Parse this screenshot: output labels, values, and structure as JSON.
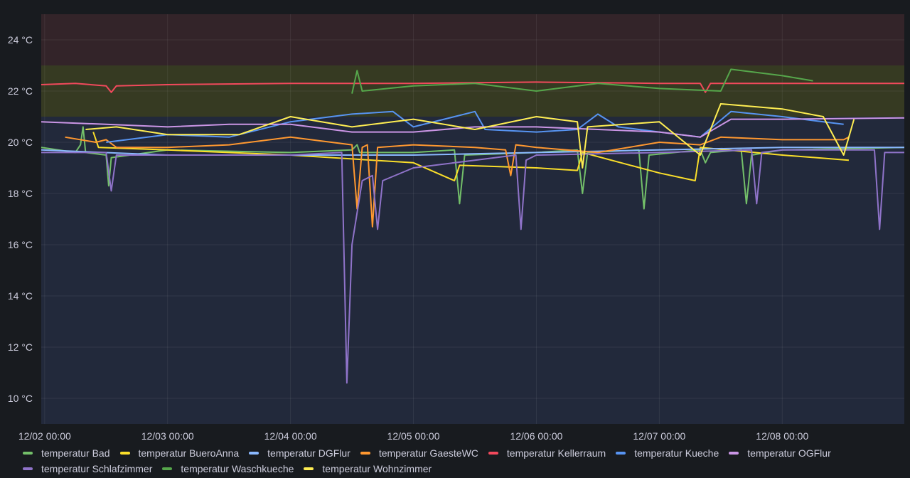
{
  "chart_data": {
    "type": "line",
    "title": "",
    "xlabel": "",
    "ylabel": "",
    "unit": "°C",
    "ylim": [
      9,
      25
    ],
    "xlim": [
      "2023-12-01T23:20",
      "2023-12-08T23:50"
    ],
    "grid": true,
    "legend_position": "bottom",
    "x_ticks": [
      "12/02 00:00",
      "12/03 00:00",
      "12/04 00:00",
      "12/05 00:00",
      "12/06 00:00",
      "12/07 00:00",
      "12/08 00:00"
    ],
    "y_ticks": [
      "10 °C",
      "12 °C",
      "14 °C",
      "16 °C",
      "18 °C",
      "20 °C",
      "22 °C",
      "24 °C"
    ],
    "thresholds": [
      {
        "from": 9,
        "to": 21,
        "color": "#22293b"
      },
      {
        "from": 21,
        "to": 23,
        "color": "#363a22"
      },
      {
        "from": 23,
        "to": 25,
        "color": "#332429"
      }
    ],
    "series": [
      {
        "name": "temperatur Bad",
        "color": "#73bf69",
        "points": [
          [
            "2023-12-01T23:20",
            19.8
          ],
          [
            "2023-12-02T06:00",
            19.6
          ],
          [
            "2023-12-02T07:00",
            19.9
          ],
          [
            "2023-12-02T07:30",
            20.6
          ],
          [
            "2023-12-02T08:00",
            19.6
          ],
          [
            "2023-12-02T12:00",
            19.5
          ],
          [
            "2023-12-02T12:30",
            18.3
          ],
          [
            "2023-12-02T13:00",
            19.4
          ],
          [
            "2023-12-03T00:00",
            19.7
          ],
          [
            "2023-12-04T00:00",
            19.6
          ],
          [
            "2023-12-04T12:00",
            19.7
          ],
          [
            "2023-12-04T13:00",
            19.9
          ],
          [
            "2023-12-04T13:30",
            19.6
          ],
          [
            "2023-12-05T00:00",
            19.6
          ],
          [
            "2023-12-05T08:00",
            19.7
          ],
          [
            "2023-12-05T09:00",
            17.6
          ],
          [
            "2023-12-05T10:00",
            19.5
          ],
          [
            "2023-12-06T00:00",
            19.6
          ],
          [
            "2023-12-06T08:00",
            19.7
          ],
          [
            "2023-12-06T09:00",
            18.0
          ],
          [
            "2023-12-06T10:00",
            19.6
          ],
          [
            "2023-12-06T20:00",
            19.7
          ],
          [
            "2023-12-06T21:00",
            17.4
          ],
          [
            "2023-12-06T22:00",
            19.5
          ],
          [
            "2023-12-07T08:00",
            19.7
          ],
          [
            "2023-12-07T09:00",
            19.2
          ],
          [
            "2023-12-07T10:00",
            19.6
          ],
          [
            "2023-12-07T16:00",
            19.7
          ],
          [
            "2023-12-07T17:00",
            17.6
          ],
          [
            "2023-12-07T18:00",
            19.5
          ],
          [
            "2023-12-08T00:00",
            19.7
          ],
          [
            "2023-12-08T23:50",
            19.8
          ]
        ]
      },
      {
        "name": "temperatur BueroAnna",
        "color": "#fade2a",
        "points": [
          [
            "2023-12-02T09:30",
            20.4
          ],
          [
            "2023-12-02T10:30",
            19.8
          ],
          [
            "2023-12-03T00:00",
            19.7
          ],
          [
            "2023-12-04T00:00",
            19.5
          ],
          [
            "2023-12-05T00:00",
            19.2
          ],
          [
            "2023-12-05T08:00",
            18.5
          ],
          [
            "2023-12-05T09:00",
            19.1
          ],
          [
            "2023-12-06T00:00",
            19.0
          ],
          [
            "2023-12-06T08:00",
            18.9
          ],
          [
            "2023-12-06T09:00",
            19.6
          ],
          [
            "2023-12-07T00:00",
            18.8
          ],
          [
            "2023-12-07T07:00",
            18.5
          ],
          [
            "2023-12-07T08:00",
            19.8
          ],
          [
            "2023-12-08T00:00",
            19.5
          ],
          [
            "2023-12-08T13:00",
            19.3
          ]
        ]
      },
      {
        "name": "temperatur DGFlur",
        "color": "#8ab8ff",
        "points": [
          [
            "2023-12-01T23:20",
            19.7
          ],
          [
            "2023-12-03T00:00",
            19.5
          ],
          [
            "2023-12-04T00:00",
            19.5
          ],
          [
            "2023-12-05T00:00",
            19.5
          ],
          [
            "2023-12-06T00:00",
            19.6
          ],
          [
            "2023-12-07T00:00",
            19.7
          ],
          [
            "2023-12-08T00:00",
            19.8
          ],
          [
            "2023-12-08T23:50",
            19.8
          ]
        ]
      },
      {
        "name": "temperatur GaesteWC",
        "color": "#ff9830",
        "points": [
          [
            "2023-12-02T04:00",
            20.2
          ],
          [
            "2023-12-02T10:00",
            20.0
          ],
          [
            "2023-12-02T12:00",
            20.1
          ],
          [
            "2023-12-02T14:00",
            19.8
          ],
          [
            "2023-12-03T00:00",
            19.8
          ],
          [
            "2023-12-03T12:00",
            19.9
          ],
          [
            "2023-12-04T00:00",
            20.2
          ],
          [
            "2023-12-04T12:00",
            19.9
          ],
          [
            "2023-12-04T13:00",
            17.4
          ],
          [
            "2023-12-04T14:00",
            19.8
          ],
          [
            "2023-12-04T15:00",
            19.9
          ],
          [
            "2023-12-04T16:00",
            16.7
          ],
          [
            "2023-12-04T17:00",
            19.8
          ],
          [
            "2023-12-05T00:00",
            19.9
          ],
          [
            "2023-12-05T12:00",
            19.8
          ],
          [
            "2023-12-05T18:00",
            19.7
          ],
          [
            "2023-12-05T19:00",
            18.7
          ],
          [
            "2023-12-05T20:00",
            19.9
          ],
          [
            "2023-12-06T00:00",
            19.8
          ],
          [
            "2023-12-06T12:00",
            19.6
          ],
          [
            "2023-12-07T00:00",
            20.0
          ],
          [
            "2023-12-07T08:00",
            19.9
          ],
          [
            "2023-12-07T12:00",
            20.2
          ],
          [
            "2023-12-08T00:00",
            20.1
          ],
          [
            "2023-12-08T12:00",
            20.1
          ],
          [
            "2023-12-08T13:00",
            20.2
          ]
        ]
      },
      {
        "name": "temperatur Kellerraum",
        "color": "#f2495c",
        "points": [
          [
            "2023-12-01T23:20",
            22.25
          ],
          [
            "2023-12-02T06:00",
            22.3
          ],
          [
            "2023-12-02T12:00",
            22.2
          ],
          [
            "2023-12-02T13:00",
            21.95
          ],
          [
            "2023-12-02T14:00",
            22.2
          ],
          [
            "2023-12-03T00:00",
            22.25
          ],
          [
            "2023-12-04T00:00",
            22.3
          ],
          [
            "2023-12-05T00:00",
            22.3
          ],
          [
            "2023-12-06T00:00",
            22.35
          ],
          [
            "2023-12-07T00:00",
            22.3
          ],
          [
            "2023-12-07T08:00",
            22.3
          ],
          [
            "2023-12-07T09:00",
            21.95
          ],
          [
            "2023-12-07T10:00",
            22.3
          ],
          [
            "2023-12-08T00:00",
            22.3
          ],
          [
            "2023-12-08T23:50",
            22.3
          ]
        ]
      },
      {
        "name": "temperatur Kueche",
        "color": "#5794f2",
        "points": [
          [
            "2023-12-02T12:00",
            20.0
          ],
          [
            "2023-12-03T00:00",
            20.3
          ],
          [
            "2023-12-03T12:00",
            20.2
          ],
          [
            "2023-12-04T00:00",
            20.8
          ],
          [
            "2023-12-04T12:00",
            21.1
          ],
          [
            "2023-12-04T20:00",
            21.2
          ],
          [
            "2023-12-05T00:00",
            20.6
          ],
          [
            "2023-12-05T12:00",
            21.2
          ],
          [
            "2023-12-05T14:00",
            20.5
          ],
          [
            "2023-12-06T00:00",
            20.4
          ],
          [
            "2023-12-06T08:00",
            20.5
          ],
          [
            "2023-12-06T12:00",
            21.1
          ],
          [
            "2023-12-06T16:00",
            20.6
          ],
          [
            "2023-12-07T00:00",
            20.4
          ],
          [
            "2023-12-07T08:00",
            20.2
          ],
          [
            "2023-12-07T14:00",
            21.2
          ],
          [
            "2023-12-08T00:00",
            21.0
          ],
          [
            "2023-12-08T12:00",
            20.7
          ]
        ]
      },
      {
        "name": "temperatur OGFlur",
        "color": "#ca95e5",
        "points": [
          [
            "2023-12-01T23:20",
            20.8
          ],
          [
            "2023-12-02T12:00",
            20.7
          ],
          [
            "2023-12-03T00:00",
            20.6
          ],
          [
            "2023-12-03T12:00",
            20.7
          ],
          [
            "2023-12-04T00:00",
            20.7
          ],
          [
            "2023-12-04T12:00",
            20.4
          ],
          [
            "2023-12-05T00:00",
            20.4
          ],
          [
            "2023-12-05T12:00",
            20.6
          ],
          [
            "2023-12-06T00:00",
            20.6
          ],
          [
            "2023-12-06T12:00",
            20.5
          ],
          [
            "2023-12-07T00:00",
            20.4
          ],
          [
            "2023-12-07T08:00",
            20.2
          ],
          [
            "2023-12-07T14:00",
            20.9
          ],
          [
            "2023-12-08T00:00",
            20.9
          ],
          [
            "2023-12-08T23:50",
            20.95
          ]
        ]
      },
      {
        "name": "temperatur Schlafzimmer",
        "color": "#8f73c9",
        "points": [
          [
            "2023-12-01T23:20",
            19.6
          ],
          [
            "2023-12-02T12:00",
            19.6
          ],
          [
            "2023-12-02T13:00",
            18.1
          ],
          [
            "2023-12-02T14:00",
            19.5
          ],
          [
            "2023-12-03T00:00",
            19.5
          ],
          [
            "2023-12-04T00:00",
            19.5
          ],
          [
            "2023-12-04T10:00",
            19.6
          ],
          [
            "2023-12-04T11:00",
            10.6
          ],
          [
            "2023-12-04T12:00",
            16.0
          ],
          [
            "2023-12-04T14:00",
            18.5
          ],
          [
            "2023-12-04T16:00",
            18.7
          ],
          [
            "2023-12-04T17:00",
            16.6
          ],
          [
            "2023-12-04T18:00",
            18.5
          ],
          [
            "2023-12-05T00:00",
            19.0
          ],
          [
            "2023-12-05T12:00",
            19.3
          ],
          [
            "2023-12-05T20:00",
            19.5
          ],
          [
            "2023-12-05T21:00",
            16.6
          ],
          [
            "2023-12-05T22:00",
            19.3
          ],
          [
            "2023-12-06T00:00",
            19.5
          ],
          [
            "2023-12-07T00:00",
            19.6
          ],
          [
            "2023-12-07T18:00",
            19.7
          ],
          [
            "2023-12-07T19:00",
            17.6
          ],
          [
            "2023-12-07T20:00",
            19.6
          ],
          [
            "2023-12-08T00:00",
            19.7
          ],
          [
            "2023-12-08T18:00",
            19.7
          ],
          [
            "2023-12-08T19:00",
            16.6
          ],
          [
            "2023-12-08T20:00",
            19.6
          ],
          [
            "2023-12-08T23:50",
            19.6
          ]
        ]
      },
      {
        "name": "temperatur Waschkueche",
        "color": "#56a64b",
        "points": [
          [
            "2023-12-04T12:00",
            21.9
          ],
          [
            "2023-12-04T13:00",
            22.8
          ],
          [
            "2023-12-04T14:00",
            22.0
          ],
          [
            "2023-12-05T00:00",
            22.2
          ],
          [
            "2023-12-05T12:00",
            22.3
          ],
          [
            "2023-12-06T00:00",
            22.0
          ],
          [
            "2023-12-06T12:00",
            22.3
          ],
          [
            "2023-12-07T00:00",
            22.1
          ],
          [
            "2023-12-07T12:00",
            22.0
          ],
          [
            "2023-12-07T14:00",
            22.85
          ],
          [
            "2023-12-08T00:00",
            22.6
          ],
          [
            "2023-12-08T06:00",
            22.4
          ]
        ]
      },
      {
        "name": "temperatur Wohnzimmer",
        "color": "#ffee52",
        "points": [
          [
            "2023-12-02T08:00",
            20.5
          ],
          [
            "2023-12-02T14:00",
            20.6
          ],
          [
            "2023-12-03T00:00",
            20.3
          ],
          [
            "2023-12-03T14:00",
            20.3
          ],
          [
            "2023-12-04T00:00",
            21.0
          ],
          [
            "2023-12-04T12:00",
            20.6
          ],
          [
            "2023-12-05T00:00",
            20.9
          ],
          [
            "2023-12-05T12:00",
            20.5
          ],
          [
            "2023-12-06T00:00",
            21.0
          ],
          [
            "2023-12-06T08:00",
            20.8
          ],
          [
            "2023-12-06T09:00",
            19.0
          ],
          [
            "2023-12-06T10:00",
            20.6
          ],
          [
            "2023-12-07T00:00",
            20.8
          ],
          [
            "2023-12-07T08:00",
            19.5
          ],
          [
            "2023-12-07T12:00",
            21.5
          ],
          [
            "2023-12-08T00:00",
            21.3
          ],
          [
            "2023-12-08T08:00",
            21.0
          ],
          [
            "2023-12-08T12:00",
            19.5
          ],
          [
            "2023-12-08T14:00",
            20.9
          ]
        ]
      }
    ]
  }
}
